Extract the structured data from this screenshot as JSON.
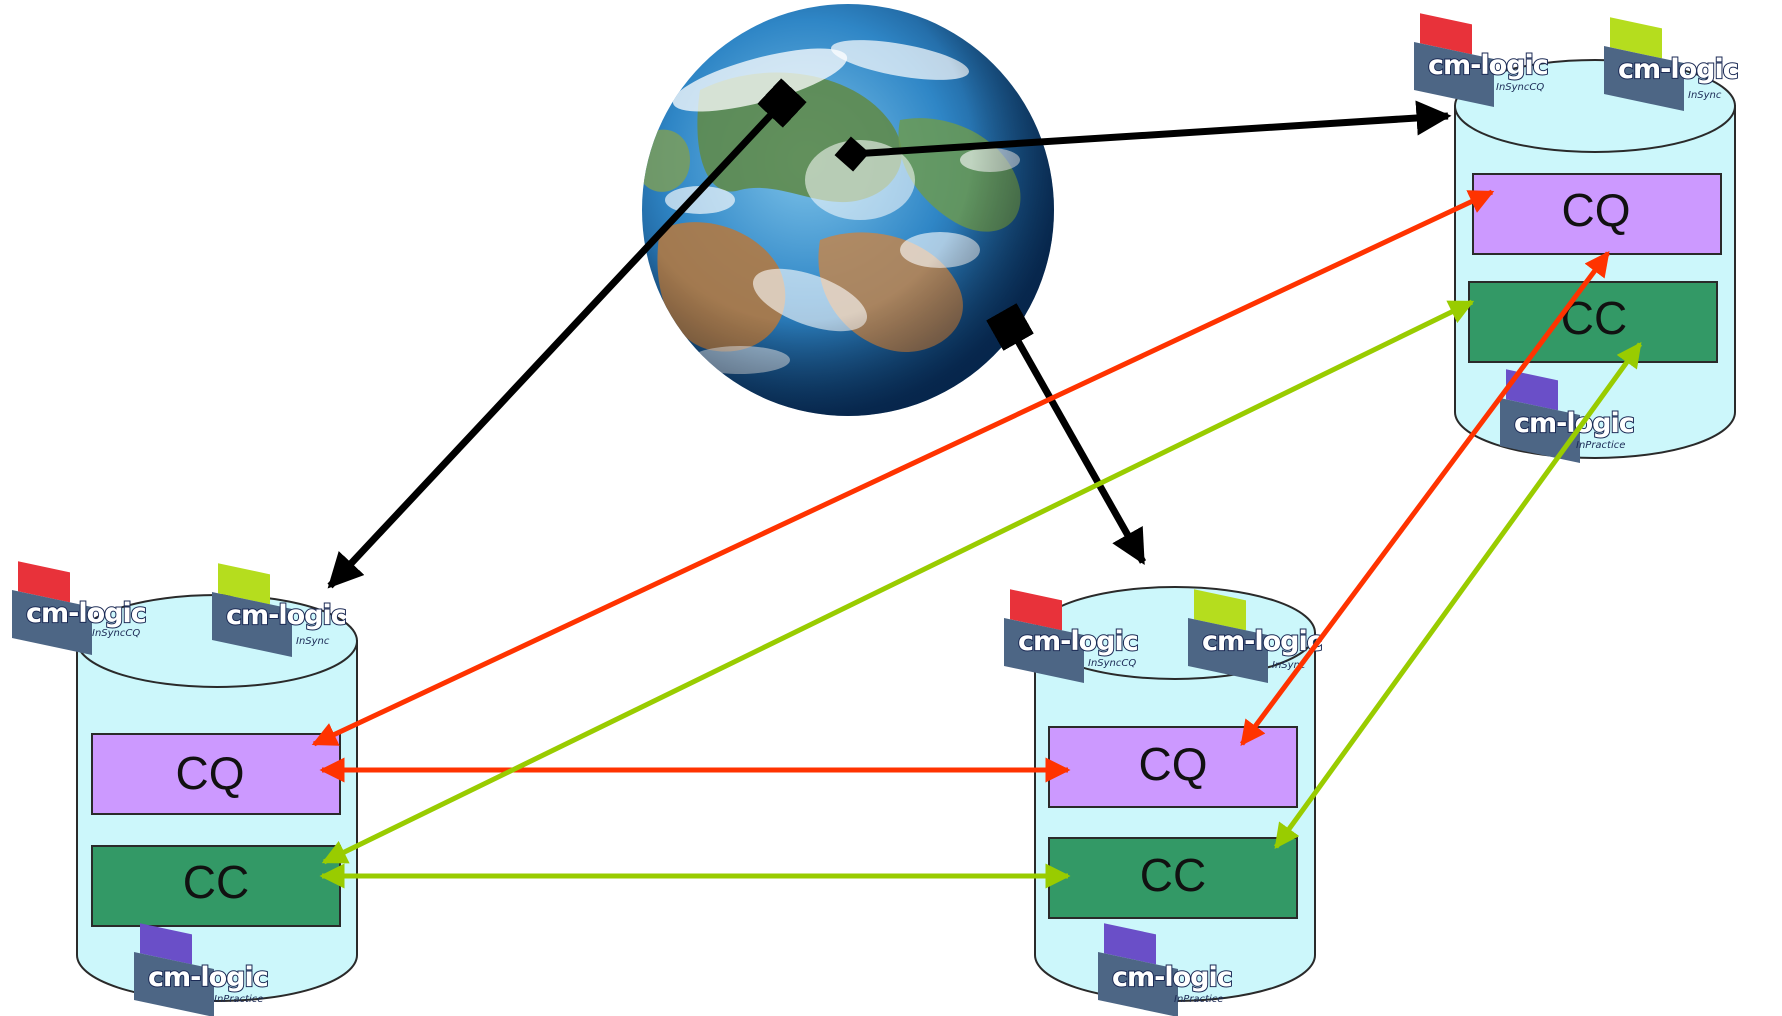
{
  "colors": {
    "background": "#ffffff",
    "cylinder_fill": "#ccf7fb",
    "cylinder_stroke": "#2a2a2a",
    "cq_box": "#cc99ff",
    "cc_box": "#339966",
    "arrow_black": "#000000",
    "arrow_red": "#ff3300",
    "arrow_green": "#99cc00"
  },
  "sites": [
    {
      "id": "site-left",
      "logos": [
        {
          "word": "cm-logic",
          "sub": "InSyncCQ",
          "accent": "#e8323a"
        },
        {
          "word": "cm-logic",
          "sub": "InSync",
          "accent": "#b5dd1e"
        },
        {
          "word": "cm-logic",
          "sub": "InPractice",
          "accent": "#6a4fc8"
        }
      ],
      "cq_label": "CQ",
      "cc_label": "CC"
    },
    {
      "id": "site-middle",
      "logos": [
        {
          "word": "cm-logic",
          "sub": "InSyncCQ",
          "accent": "#e8323a"
        },
        {
          "word": "cm-logic",
          "sub": "InSync",
          "accent": "#b5dd1e"
        },
        {
          "word": "cm-logic",
          "sub": "InPractice",
          "accent": "#6a4fc8"
        }
      ],
      "cq_label": "CQ",
      "cc_label": "CC"
    },
    {
      "id": "site-right",
      "logos": [
        {
          "word": "cm-logic",
          "sub": "InSyncCQ",
          "accent": "#e8323a"
        },
        {
          "word": "cm-logic",
          "sub": "InSync",
          "accent": "#b5dd1e"
        },
        {
          "word": "cm-logic",
          "sub": "InPractice",
          "accent": "#6a4fc8"
        }
      ],
      "cq_label": "CQ",
      "cc_label": "CC"
    }
  ],
  "globe": {
    "icon": "earth-globe-icon"
  },
  "connections": [
    {
      "from": "globe",
      "to": "site-left",
      "color": "black"
    },
    {
      "from": "globe",
      "to": "site-right",
      "color": "black"
    },
    {
      "from": "globe",
      "to": "site-middle",
      "color": "black"
    },
    {
      "from": "site-left.cq",
      "to": "site-middle.cq",
      "color": "red"
    },
    {
      "from": "site-left.cq",
      "to": "site-right.cq",
      "color": "red"
    },
    {
      "from": "site-middle.cq",
      "to": "site-right.cq",
      "color": "red"
    },
    {
      "from": "site-left.cc",
      "to": "site-middle.cc",
      "color": "green"
    },
    {
      "from": "site-left.cc",
      "to": "site-right.cc",
      "color": "green"
    },
    {
      "from": "site-middle.cc",
      "to": "site-right.cc",
      "color": "green"
    }
  ]
}
